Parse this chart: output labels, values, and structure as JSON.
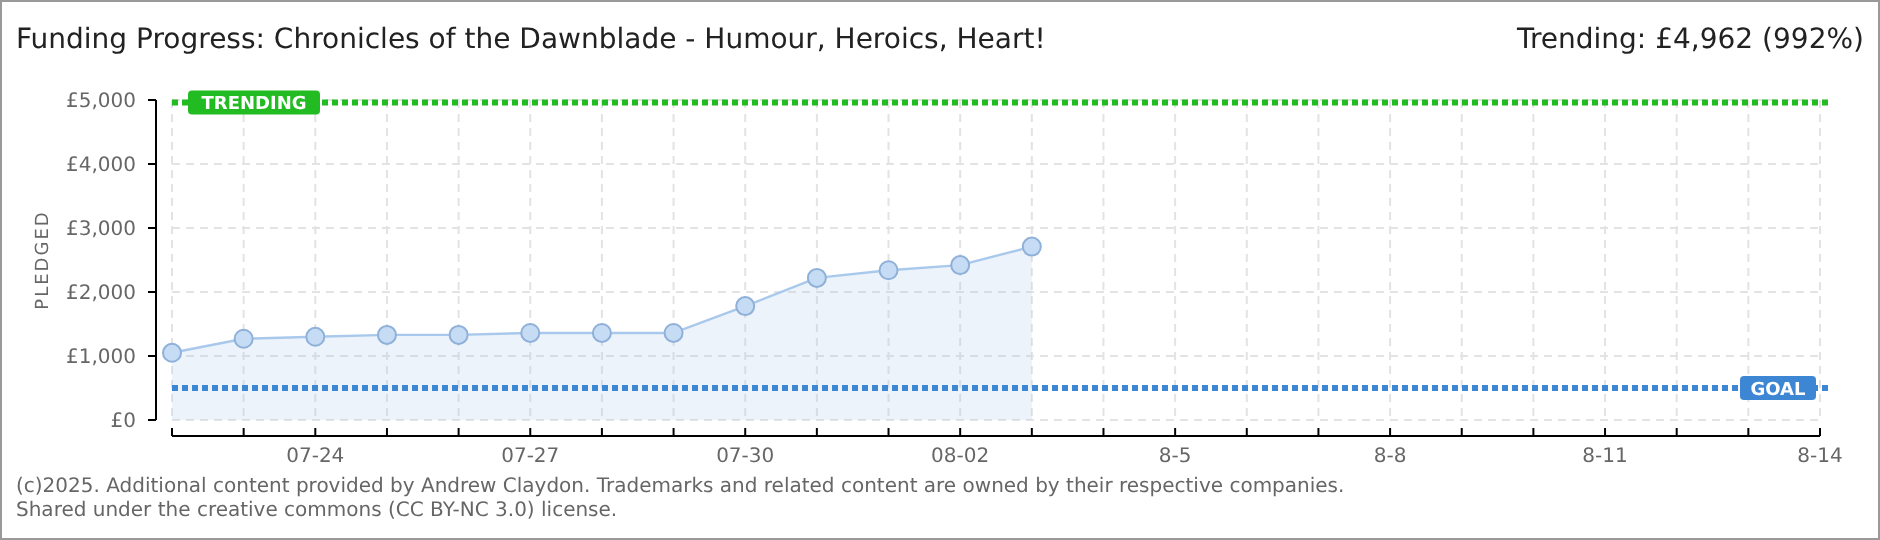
{
  "chart_data": {
    "type": "area",
    "title": "Funding Progress: Chronicles of the Dawnblade - Humour, Heroics, Heart!",
    "subtitle": "Trending:  £4,962 (992%)",
    "ylabel": "PLEDGED",
    "x": [
      "--07-22",
      "--07-23",
      "--07-24",
      "--07-25",
      "--07-26",
      "--07-27",
      "--07-28",
      "--07-29",
      "--07-30",
      "--07-31",
      "--08-01",
      "--08-02",
      "--08-03"
    ],
    "series": [
      {
        "color": "#a9c9ec",
        "values": [
          1050,
          1270,
          1300,
          1330,
          1330,
          1360,
          1360,
          1360,
          1780,
          2220,
          2340,
          2420,
          2710
        ]
      }
    ],
    "xlim": [
      "--07-22",
      "--08-14"
    ],
    "xticks": [
      {
        "value": "--07-22",
        "label": null
      },
      {
        "value": "--07-23",
        "label": null
      },
      {
        "value": "--07-24",
        "label": "07-24"
      },
      {
        "value": "--07-25",
        "label": null
      },
      {
        "value": "--07-26",
        "label": null
      },
      {
        "value": "--07-27",
        "label": "07-27"
      },
      {
        "value": "--07-28",
        "label": null
      },
      {
        "value": "--07-29",
        "label": null
      },
      {
        "value": "--07-30",
        "label": "07-30"
      },
      {
        "value": "--07-31",
        "label": null
      },
      {
        "value": "--08-01",
        "label": null
      },
      {
        "value": "--08-02",
        "label": "08-02"
      },
      {
        "value": "--08-03",
        "label": null
      },
      {
        "value": "--08-04",
        "label": null
      },
      {
        "value": "--08-05",
        "label": "8-5"
      },
      {
        "value": "--08-06",
        "label": null
      },
      {
        "value": "--08-07",
        "label": null
      },
      {
        "value": "--08-08",
        "label": "8-8"
      },
      {
        "value": "--08-09",
        "label": null
      },
      {
        "value": "--08-10",
        "label": null
      },
      {
        "value": "--08-11",
        "label": "8-11"
      },
      {
        "value": "--08-12",
        "label": null
      },
      {
        "value": "--08-13",
        "label": null
      },
      {
        "value": "--08-14",
        "label": "8-14"
      }
    ],
    "ylim": [
      0,
      5000
    ],
    "yticks": [
      {
        "value": 0,
        "label": "£0"
      },
      {
        "value": 1000,
        "label": "£1,000"
      },
      {
        "value": 2000,
        "label": "£2,000"
      },
      {
        "value": 3000,
        "label": "£3,000"
      },
      {
        "value": 4000,
        "label": "£4,000"
      },
      {
        "value": 5000,
        "label": "£5,000"
      }
    ],
    "grid": true,
    "marker": "circle",
    "line_style": "solid",
    "ref_lines": [
      {
        "axis": "y",
        "value": 4962,
        "label": "TRENDING",
        "color": "#22bb22",
        "line_style": "dotted"
      },
      {
        "axis": "y",
        "value": 500,
        "label": "GOAL",
        "color": "#3d86d4",
        "line_style": "dotted"
      }
    ],
    "annotations": [
      "(c)2025. Additional content provided by Andrew Claydon. Trademarks and related content are owned by their respective companies.",
      "Shared under the creative commons (CC BY-NC 3.0) license."
    ]
  }
}
